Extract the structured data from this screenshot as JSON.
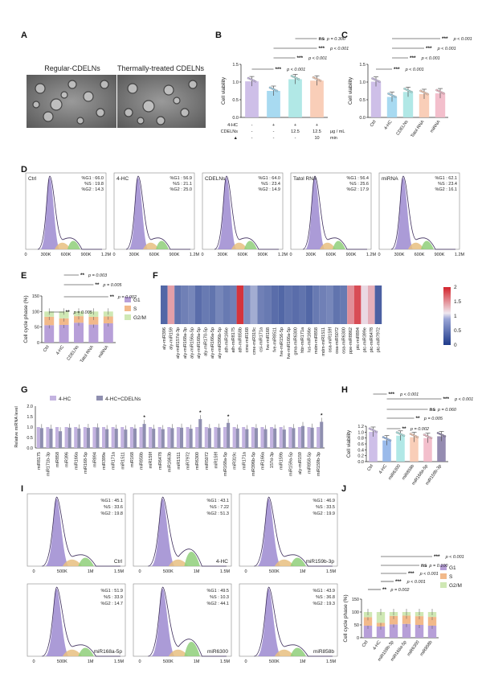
{
  "figure": {
    "panel_labels": [
      "A",
      "B",
      "C",
      "D",
      "E",
      "F",
      "G",
      "H",
      "I",
      "J"
    ]
  },
  "panel_a": {
    "titles": [
      "Regular-CDELNs",
      "Thermally-treated CDELNs"
    ]
  },
  "chart_data": [
    {
      "id": "B",
      "type": "bar",
      "ylabel": "Cell viability",
      "ylim": [
        0,
        1.5
      ],
      "yticks": [
        "0.0",
        "0.5",
        "1.0",
        "1.5"
      ],
      "categories": [
        "1",
        "2",
        "3",
        "4"
      ],
      "values": [
        1.02,
        0.75,
        1.08,
        1.04
      ],
      "colors": [
        "#c9b8e6",
        "#9fd6f0",
        "#a9e6e3",
        "#f8c9b0"
      ],
      "cond_rows": [
        {
          "label": "4-HC",
          "vals": [
            "-",
            "+",
            "+",
            "+"
          ],
          "unit": ""
        },
        {
          "label": "CDELNs",
          "vals": [
            "-",
            "-",
            "12.5",
            "12.5"
          ],
          "unit": "μg / mL"
        },
        {
          "label": "▲",
          "vals": [
            "-",
            "-",
            "-",
            "10"
          ],
          "unit": "min"
        }
      ],
      "sig": [
        {
          "stars": "ns",
          "p": "p = 0.300"
        },
        {
          "stars": "***",
          "p": "p < 0.001"
        },
        {
          "stars": "***",
          "p": "p < 0.001"
        },
        {
          "stars": "***",
          "p": "p < 0.001"
        }
      ]
    },
    {
      "id": "C",
      "type": "bar",
      "ylabel": "Cell viability",
      "ylim": [
        0,
        1.5
      ],
      "yticks": [
        "0.0",
        "0.5",
        "1.0",
        "1.5"
      ],
      "categories": [
        "Ctrl",
        "4-HC",
        "CDELNs",
        "Tatol RNA",
        "miRNA"
      ],
      "values": [
        1.01,
        0.58,
        0.72,
        0.66,
        0.68
      ],
      "colors": [
        "#c9b8e6",
        "#9fd6f0",
        "#a9e6e3",
        "#f8c9b0",
        "#f2b8c6"
      ],
      "sig": [
        {
          "stars": "***",
          "p": "p < 0.001"
        },
        {
          "stars": "***",
          "p": "p < 0.001"
        },
        {
          "stars": "***",
          "p": "p < 0.001"
        },
        {
          "stars": "***",
          "p": "p < 0.001"
        }
      ]
    },
    {
      "id": "D",
      "type": "histogram",
      "xticks": [
        "0",
        "300K",
        "600K",
        "900K",
        "1.2M"
      ],
      "panels": [
        {
          "name": "Ctrl",
          "g1": "%G1 : 66.0",
          "s": "%S : 19.8",
          "g2": "%G2 : 14.3"
        },
        {
          "name": "4-HC",
          "g1": "%G1 : 56.9",
          "s": "%S : 21.1",
          "g2": "%G2 : 25.0"
        },
        {
          "name": "CDELNs",
          "g1": "%G1 : 64.0",
          "s": "%S : 23.4",
          "g2": "%G2 : 14.9"
        },
        {
          "name": "Tatol RNA",
          "g1": "%G1 : 56.4",
          "s": "%S : 25.6",
          "g2": "%G2 : 17.9"
        },
        {
          "name": "miRNA",
          "g1": "%G1 : 62.1",
          "s": "%S : 23.4",
          "g2": "%G2 : 16.1"
        }
      ]
    },
    {
      "id": "E",
      "type": "stacked-bar",
      "ylabel": "Cell cycle phase (%)",
      "ylim": [
        0,
        150
      ],
      "yticks": [
        "0",
        "50",
        "100",
        "150"
      ],
      "categories": [
        "Ctrl",
        "4-HC",
        "CDELNs",
        "Tatol RNA",
        "miRNA"
      ],
      "series": [
        {
          "name": "G1",
          "color": "#b79fd8",
          "values": [
            56,
            57,
            64,
            58,
            62
          ]
        },
        {
          "name": "S",
          "color": "#f2b98a",
          "values": [
            27,
            21,
            21,
            25,
            22
          ]
        },
        {
          "name": "G2/M",
          "color": "#cfe8b4",
          "values": [
            17,
            22,
            15,
            17,
            16
          ]
        }
      ],
      "sig": [
        {
          "stars": "**",
          "p": "p = 0.005"
        },
        {
          "stars": "**",
          "p": "p = 0.002"
        },
        {
          "stars": "**",
          "p": "p = 0.005"
        },
        {
          "stars": "**",
          "p": "p = 0.003"
        }
      ]
    },
    {
      "id": "F",
      "type": "heatmap",
      "colorbar_ticks": [
        "0",
        "0.5",
        "1",
        "1.5",
        "2"
      ],
      "labels": [
        "aly-miR396",
        "aly-miR159",
        "aly-miR157d-3p",
        "aly-miR168a-3p",
        "aly-miR156a-5p",
        "aly-miR168a-5p",
        "aly-miR170-5p",
        "aly-miR166a-5p",
        "aly-miR396b-5p",
        "ath-miR166e",
        "ath-miR8175",
        "ath-miR858b",
        "cme-miR168",
        "cme-miR319c",
        "csi-miR171a",
        "fve-miR168",
        "fve-miR8511",
        "fve-miR156-5p",
        "fve-miR166a-5p",
        "gma-miR6300",
        "hbr-miR171a",
        "lus-miR166e",
        "mdm-miR858",
        "mdm-miR1511",
        "osa-miR159f",
        "osa-miR5072",
        "osa-miR6300",
        "ppe-miR8862",
        "ptc-miR894",
        "ptc-miR399e",
        "ptc-miR6478",
        "ptc-miR7972"
      ],
      "values": [
        0.35,
        1.55,
        0.45,
        0.55,
        0.6,
        0.4,
        0.5,
        0.45,
        0.6,
        0.5,
        0.55,
        2.2,
        0.65,
        0.9,
        0.55,
        0.5,
        0.4,
        0.35,
        0.45,
        0.4,
        0.45,
        0.35,
        0.5,
        0.55,
        0.6,
        0.45,
        0.5,
        1.65,
        2.05,
        1.2,
        1.45,
        0.3
      ]
    },
    {
      "id": "G",
      "type": "bar",
      "ylabel": "Relative miRNA level",
      "ylim": [
        0,
        2.0
      ],
      "yticks": [
        "0.0",
        "0.5",
        "1.0",
        "1.5",
        "2.0"
      ],
      "legend": [
        "4-HC",
        "4-HC+CDELNs"
      ],
      "categories": [
        "miR8175",
        "miR171b-3p",
        "miR858",
        "miR396",
        "miR166a",
        "miR168-5p",
        "miR894",
        "miR399e",
        "miR171a",
        "miR1511",
        "miR168",
        "miR858b",
        "miR159f",
        "miR6478",
        "miR1663b",
        "miR1511",
        "miR7972",
        "miR6300",
        "miR5072",
        "miR159f",
        "miR168a-5p",
        "miR319c",
        "miR171a",
        "miR396b-5p",
        "miR166a",
        "157d-3p",
        "miR159b",
        "miR159a-5p",
        "aly-miR159",
        "miR858-5p",
        "miR159b-3p"
      ],
      "series": [
        {
          "name": "4-HC",
          "color": "#c3b3e0",
          "values": [
            1,
            1,
            1,
            1,
            1,
            1,
            1,
            1,
            1,
            1,
            1,
            1,
            1,
            1,
            1,
            1,
            1,
            1,
            1,
            1,
            1,
            1,
            1,
            1,
            1,
            1,
            1,
            1,
            1,
            1,
            1
          ]
        },
        {
          "name": "4-HC+CDELNs",
          "color": "#8f8fb0",
          "values": [
            0.95,
            0.92,
            0.8,
            0.97,
            0.93,
            0.96,
            0.98,
            0.9,
            0.92,
            0.88,
            0.93,
            1.15,
            0.92,
            0.9,
            0.95,
            0.97,
            0.92,
            1.38,
            0.95,
            0.97,
            1.2,
            0.93,
            0.9,
            0.95,
            0.9,
            0.93,
            0.88,
            0.95,
            1.05,
            0.97,
            1.25
          ]
        },
        {
          "name": "stars",
          "values": [
            0,
            0,
            0,
            0,
            0,
            0,
            0,
            0,
            0,
            0,
            0,
            1,
            0,
            0,
            0,
            0,
            0,
            1,
            0,
            0,
            1,
            0,
            0,
            0,
            0,
            0,
            0,
            0,
            0,
            0,
            1
          ]
        }
      ]
    },
    {
      "id": "H",
      "type": "bar",
      "ylabel": "Cell viability",
      "ylim": [
        0,
        1.2
      ],
      "yticks": [
        "0.0",
        "0.2",
        "0.4",
        "0.6",
        "0.8",
        "1.0",
        "1.2"
      ],
      "categories": [
        "Ctrl",
        "4-HC",
        "miR6300",
        "miR858b",
        "miR168a-5p",
        "miR159b-3p"
      ],
      "values": [
        1.01,
        0.72,
        0.88,
        0.83,
        0.8,
        0.86
      ],
      "colors": [
        "#c9b8e6",
        "#8fb3e8",
        "#a9e6e3",
        "#f8c9b0",
        "#f2b8c6",
        "#8a7fa8"
      ],
      "sig": [
        {
          "stars": "***",
          "p": "p < 0.001"
        },
        {
          "stars": "***",
          "p": "p < 0.001"
        },
        {
          "stars": "ns",
          "p": "p = 0.060"
        },
        {
          "stars": "**",
          "p": "p = 0.005"
        },
        {
          "stars": "**",
          "p": "p = 0.002"
        }
      ]
    },
    {
      "id": "I",
      "type": "histogram",
      "xticks": [
        "0",
        "500K",
        "1M",
        "1.5M"
      ],
      "panels": [
        {
          "name": "Ctrl",
          "g1": "%G1 : 45.1",
          "s": "%S : 33.6",
          "g2": "%G2 : 19.8"
        },
        {
          "name": "4-HC",
          "g1": "%G1 : 43.1",
          "s": "%S : 7.22",
          "g2": "%G2 : 51.3"
        },
        {
          "name": "miR159b-3p",
          "g1": "%G1 : 46.9",
          "s": "%S : 33.5",
          "g2": "%G2 : 19.9"
        },
        {
          "name": "miR168a-5p",
          "g1": "%G1 : 51.9",
          "s": "%S : 33.9",
          "g2": "%G2 : 14.7"
        },
        {
          "name": "miR6300",
          "g1": "%G1 : 49.5",
          "s": "%S : 10.3",
          "g2": "%G2 : 44.1"
        },
        {
          "name": "miR858b",
          "g1": "%G1 : 43.9",
          "s": "%S : 36.8",
          "g2": "%G2 : 19.3"
        }
      ]
    },
    {
      "id": "J",
      "type": "stacked-bar",
      "ylabel": "Cell cycle phase (%)",
      "ylim": [
        0,
        150
      ],
      "yticks": [
        "0",
        "50",
        "100",
        "150"
      ],
      "categories": [
        "Ctrl",
        "4-HC",
        "miR159b-3p",
        "miR168a-5p",
        "miR6300",
        "miR858b"
      ],
      "series": [
        {
          "name": "G1",
          "color": "#b79fd8",
          "values": [
            47,
            44,
            52,
            54,
            50,
            47
          ]
        },
        {
          "name": "S",
          "color": "#f2b98a",
          "values": [
            33,
            14,
            33,
            32,
            34,
            34
          ]
        },
        {
          "name": "G2/M",
          "color": "#cfe8b4",
          "values": [
            20,
            42,
            15,
            14,
            16,
            19
          ]
        }
      ],
      "sig": [
        {
          "stars": "**",
          "p": "p = 0.002"
        },
        {
          "stars": "***",
          "p": "p < 0.001"
        },
        {
          "stars": "***",
          "p": "p < 0.001"
        },
        {
          "stars": "ns",
          "p": "p = 0.100"
        },
        {
          "stars": "***",
          "p": "p < 0.001"
        }
      ]
    }
  ]
}
